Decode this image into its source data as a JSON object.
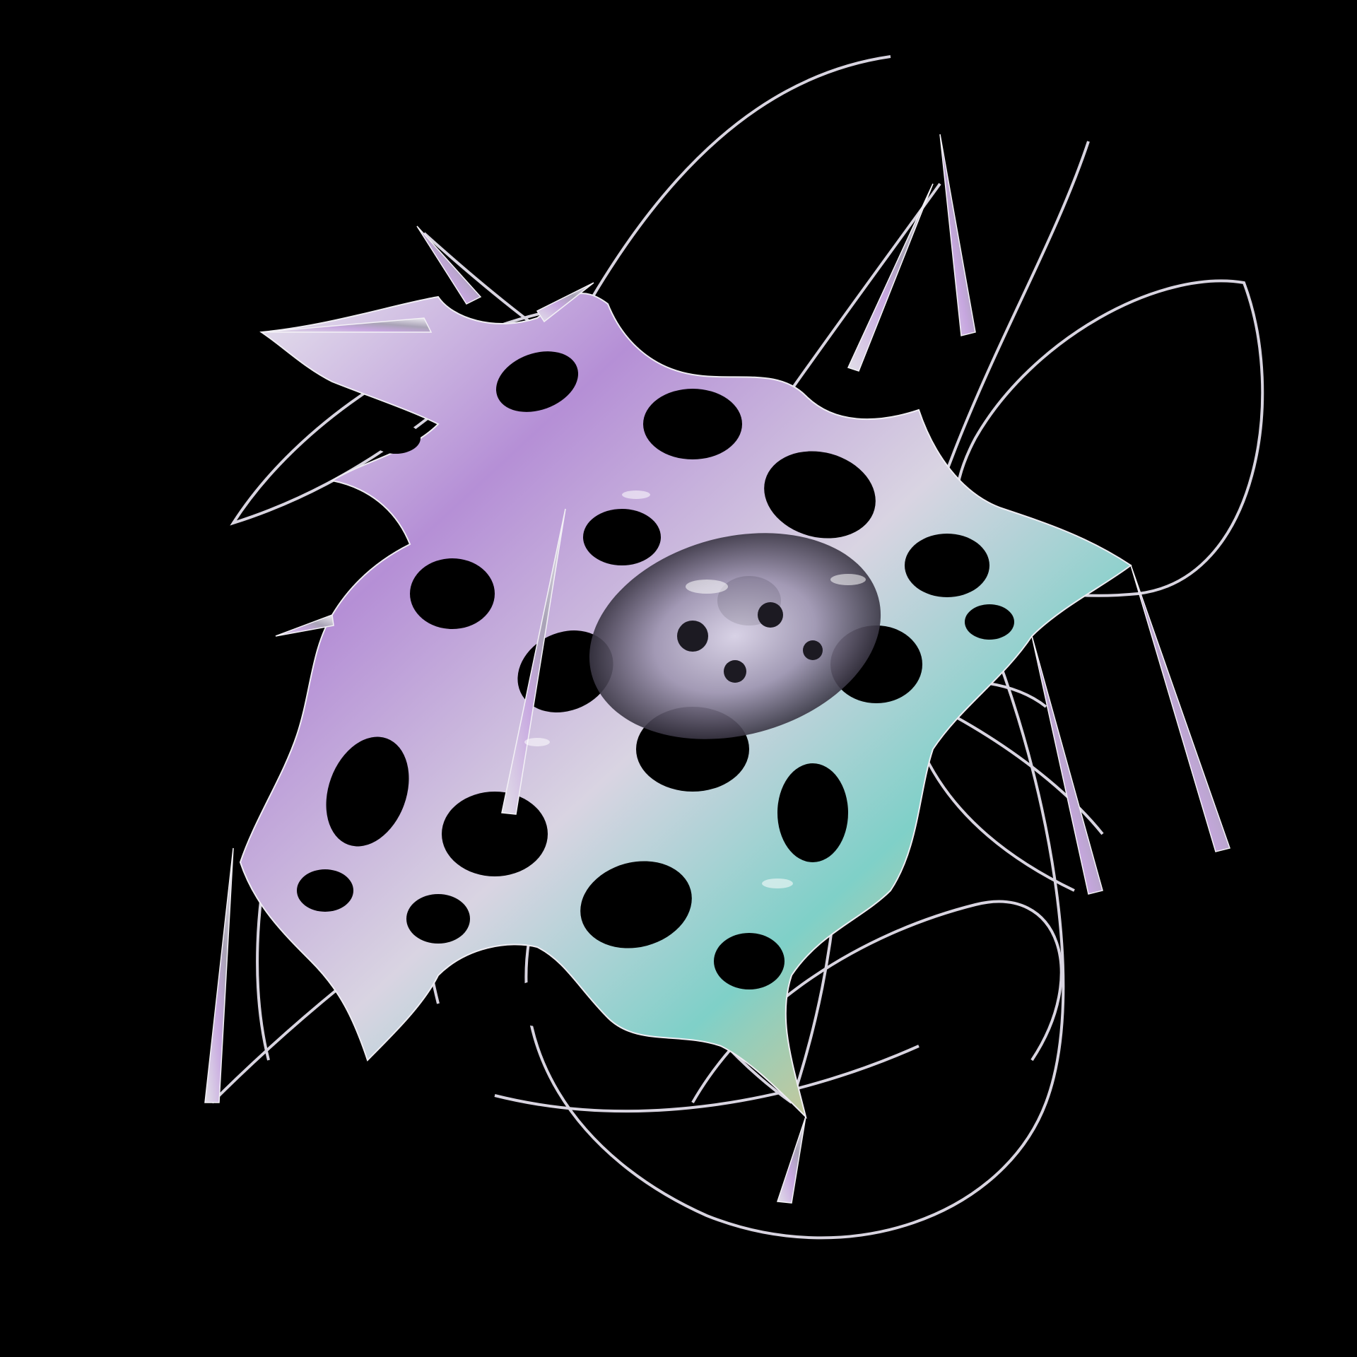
{
  "scene": {
    "description_tag": "abstract-3d-sculpture",
    "colors": {
      "background": "#000000",
      "surface_light": "#e8e6ee",
      "surface_mid": "#a9a3b6",
      "surface_dark": "#3a3644",
      "iridescent_violet": "#b58fd6",
      "iridescent_teal": "#7fd0c8",
      "iridescent_gold": "#d8c690"
    }
  }
}
